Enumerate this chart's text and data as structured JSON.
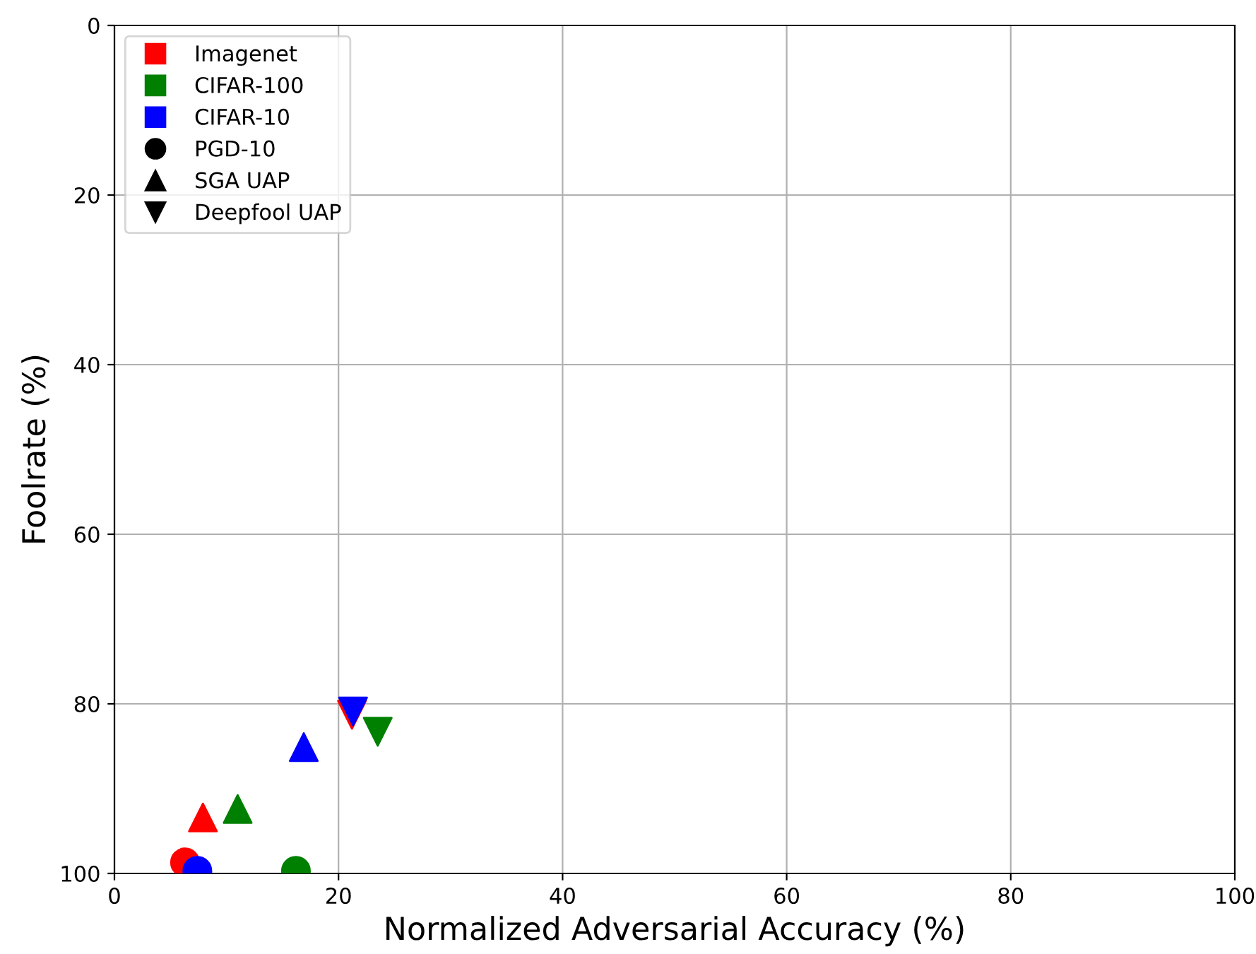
{
  "chart_data": {
    "type": "scatter",
    "xlabel": "Normalized Adversarial Accuracy (%)",
    "ylabel": "Foolrate (%)",
    "xlim": [
      0,
      100
    ],
    "xticks": [
      0,
      20,
      40,
      60,
      80,
      100
    ],
    "ylim": [
      100,
      0
    ],
    "yticks": [
      0,
      20,
      40,
      60,
      80,
      100
    ],
    "grid": true,
    "legend": "top left",
    "series": [
      {
        "color": "#ff0000",
        "marker": "circle",
        "x": [
          6.3
        ],
        "values": [
          98.7
        ]
      },
      {
        "color": "#0000ff",
        "marker": "circle",
        "x": [
          7.4
        ],
        "values": [
          99.7
        ]
      },
      {
        "color": "#008000",
        "marker": "circle",
        "x": [
          16.2
        ],
        "values": [
          99.7
        ]
      },
      {
        "color": "#ff0000",
        "marker": "triangle",
        "x": [
          7.9
        ],
        "values": [
          93.4
        ]
      },
      {
        "color": "#008000",
        "marker": "triangle",
        "x": [
          11.0
        ],
        "values": [
          92.4
        ]
      },
      {
        "color": "#0000ff",
        "marker": "triangle",
        "x": [
          16.9
        ],
        "values": [
          85.1
        ]
      },
      {
        "color": "#ff0000",
        "marker": "triangle_down",
        "x": [
          21.2
        ],
        "values": [
          81.3
        ]
      },
      {
        "color": "#0000ff",
        "marker": "triangle_down",
        "x": [
          21.3
        ],
        "values": [
          80.9
        ]
      },
      {
        "color": "#008000",
        "marker": "triangle_down",
        "x": [
          23.5
        ],
        "values": [
          83.3
        ]
      },
      {
        "name": "Imagenet",
        "color": "#ff0000",
        "marker": "square"
      },
      {
        "name": "CIFAR-100",
        "color": "#008000",
        "marker": "square"
      },
      {
        "name": "CIFAR-10",
        "color": "#0000ff",
        "marker": "square"
      },
      {
        "name": "PGD-10",
        "color": "#000000",
        "marker": "circle"
      },
      {
        "name": "SGA UAP",
        "color": "#000000",
        "marker": "triangle"
      },
      {
        "name": "Deepfool UAP",
        "color": "#000000",
        "marker": "triangle_down"
      }
    ]
  }
}
